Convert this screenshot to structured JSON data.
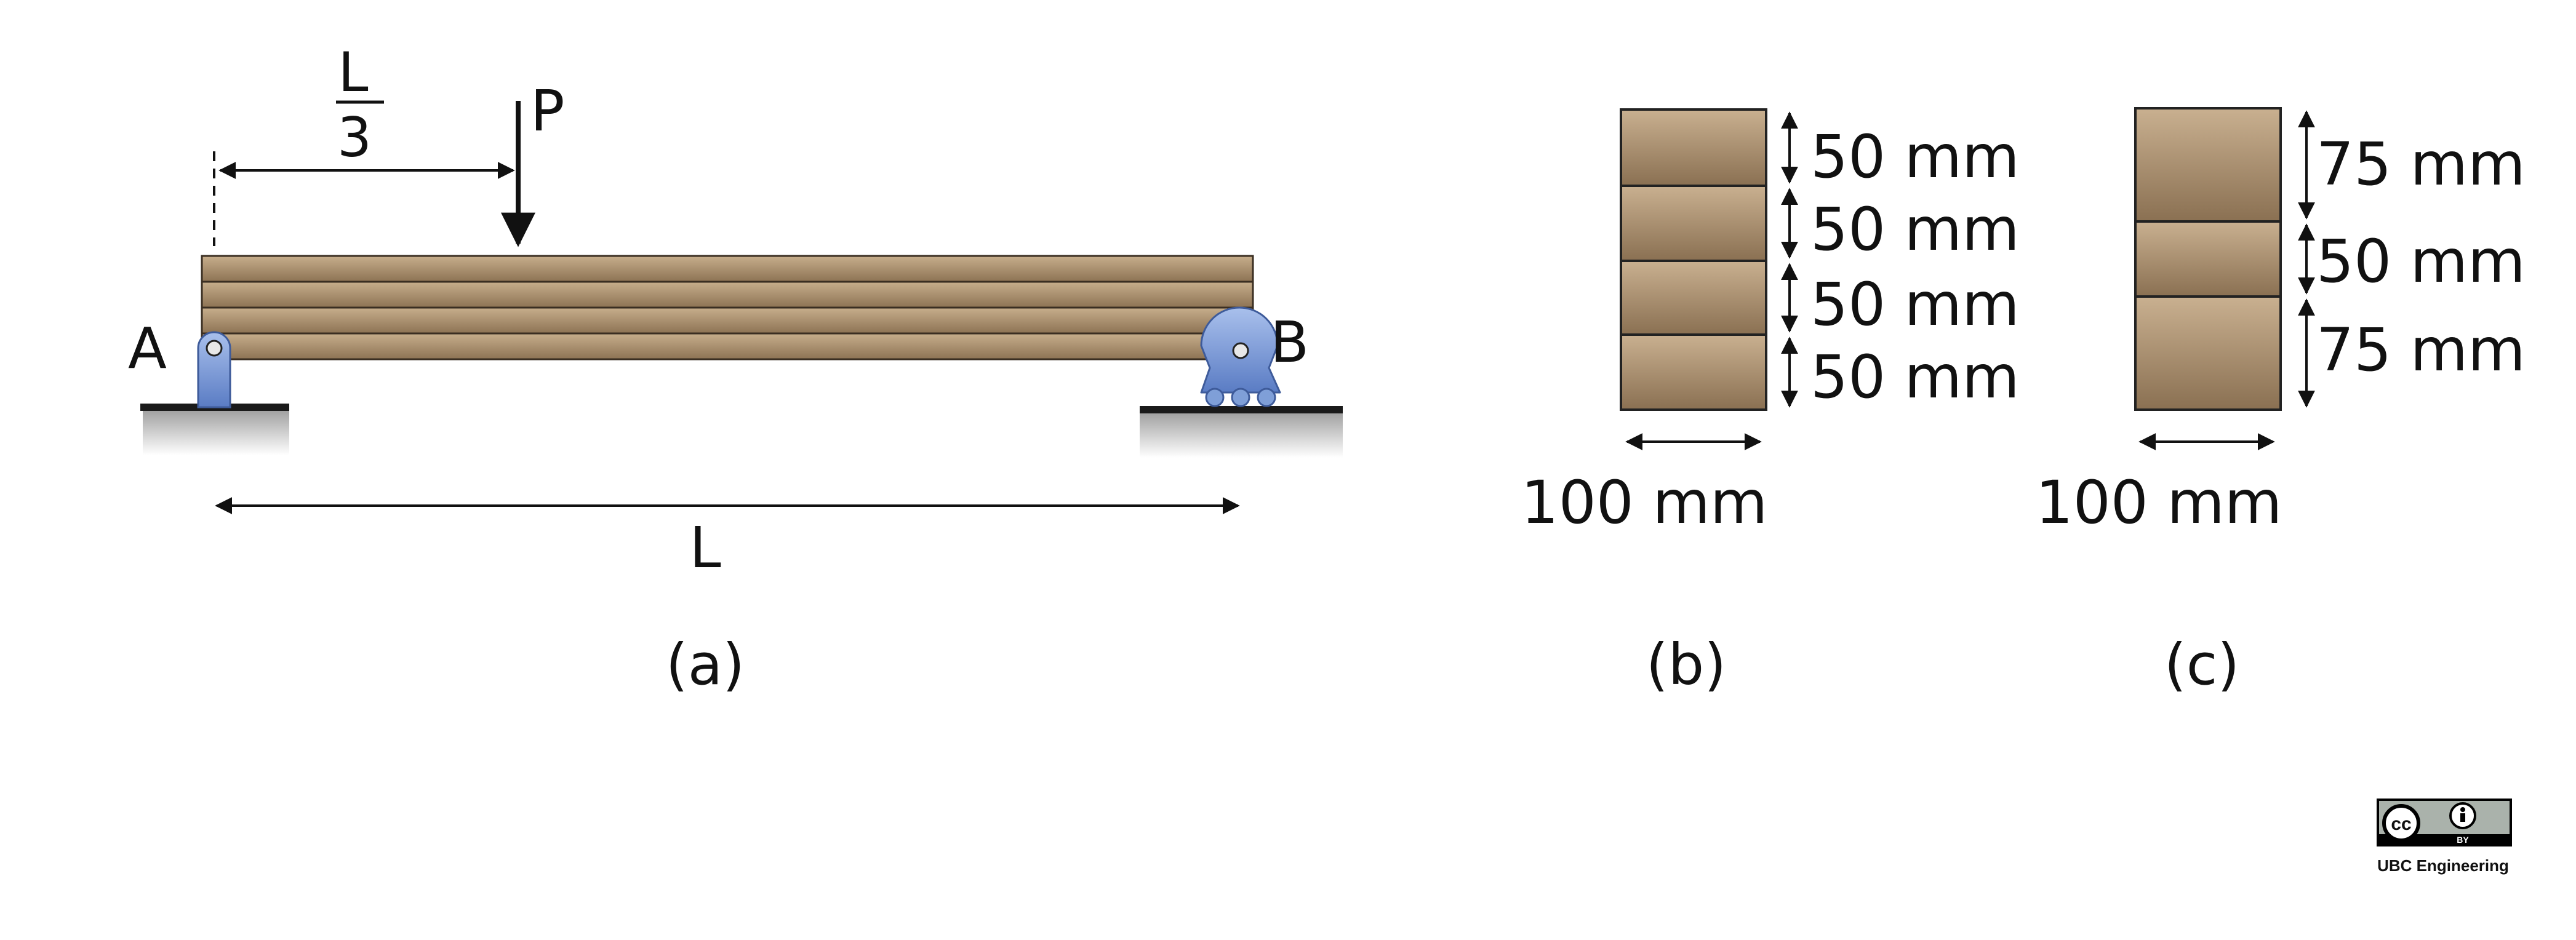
{
  "colors": {
    "wood_light": "#c7ae8c",
    "wood_dark": "#8d7354",
    "support_blue": "#7f9fd8",
    "support_blue_dark": "#3e5b9a",
    "ground": "#1a1a1a",
    "ink": "#111111"
  },
  "icons": [
    "pin-support-icon",
    "roller-support-icon",
    "load-arrow-icon",
    "cc-by-license-icon"
  ],
  "labels": {
    "load": "P",
    "third_num": "L",
    "third_den": "3",
    "span": "L",
    "support_a": "A",
    "support_b": "B"
  },
  "section_b": {
    "layers": [
      "50 mm",
      "50 mm",
      "50 mm",
      "50 mm"
    ],
    "width": "100 mm"
  },
  "section_c": {
    "layers": [
      "75 mm",
      "50 mm",
      "75 mm"
    ],
    "width": "100 mm"
  },
  "captions": {
    "a": "(a)",
    "b": "(b)",
    "c": "(c)"
  },
  "license": {
    "cc": "cc",
    "by": "BY",
    "credit": "UBC Engineering"
  }
}
